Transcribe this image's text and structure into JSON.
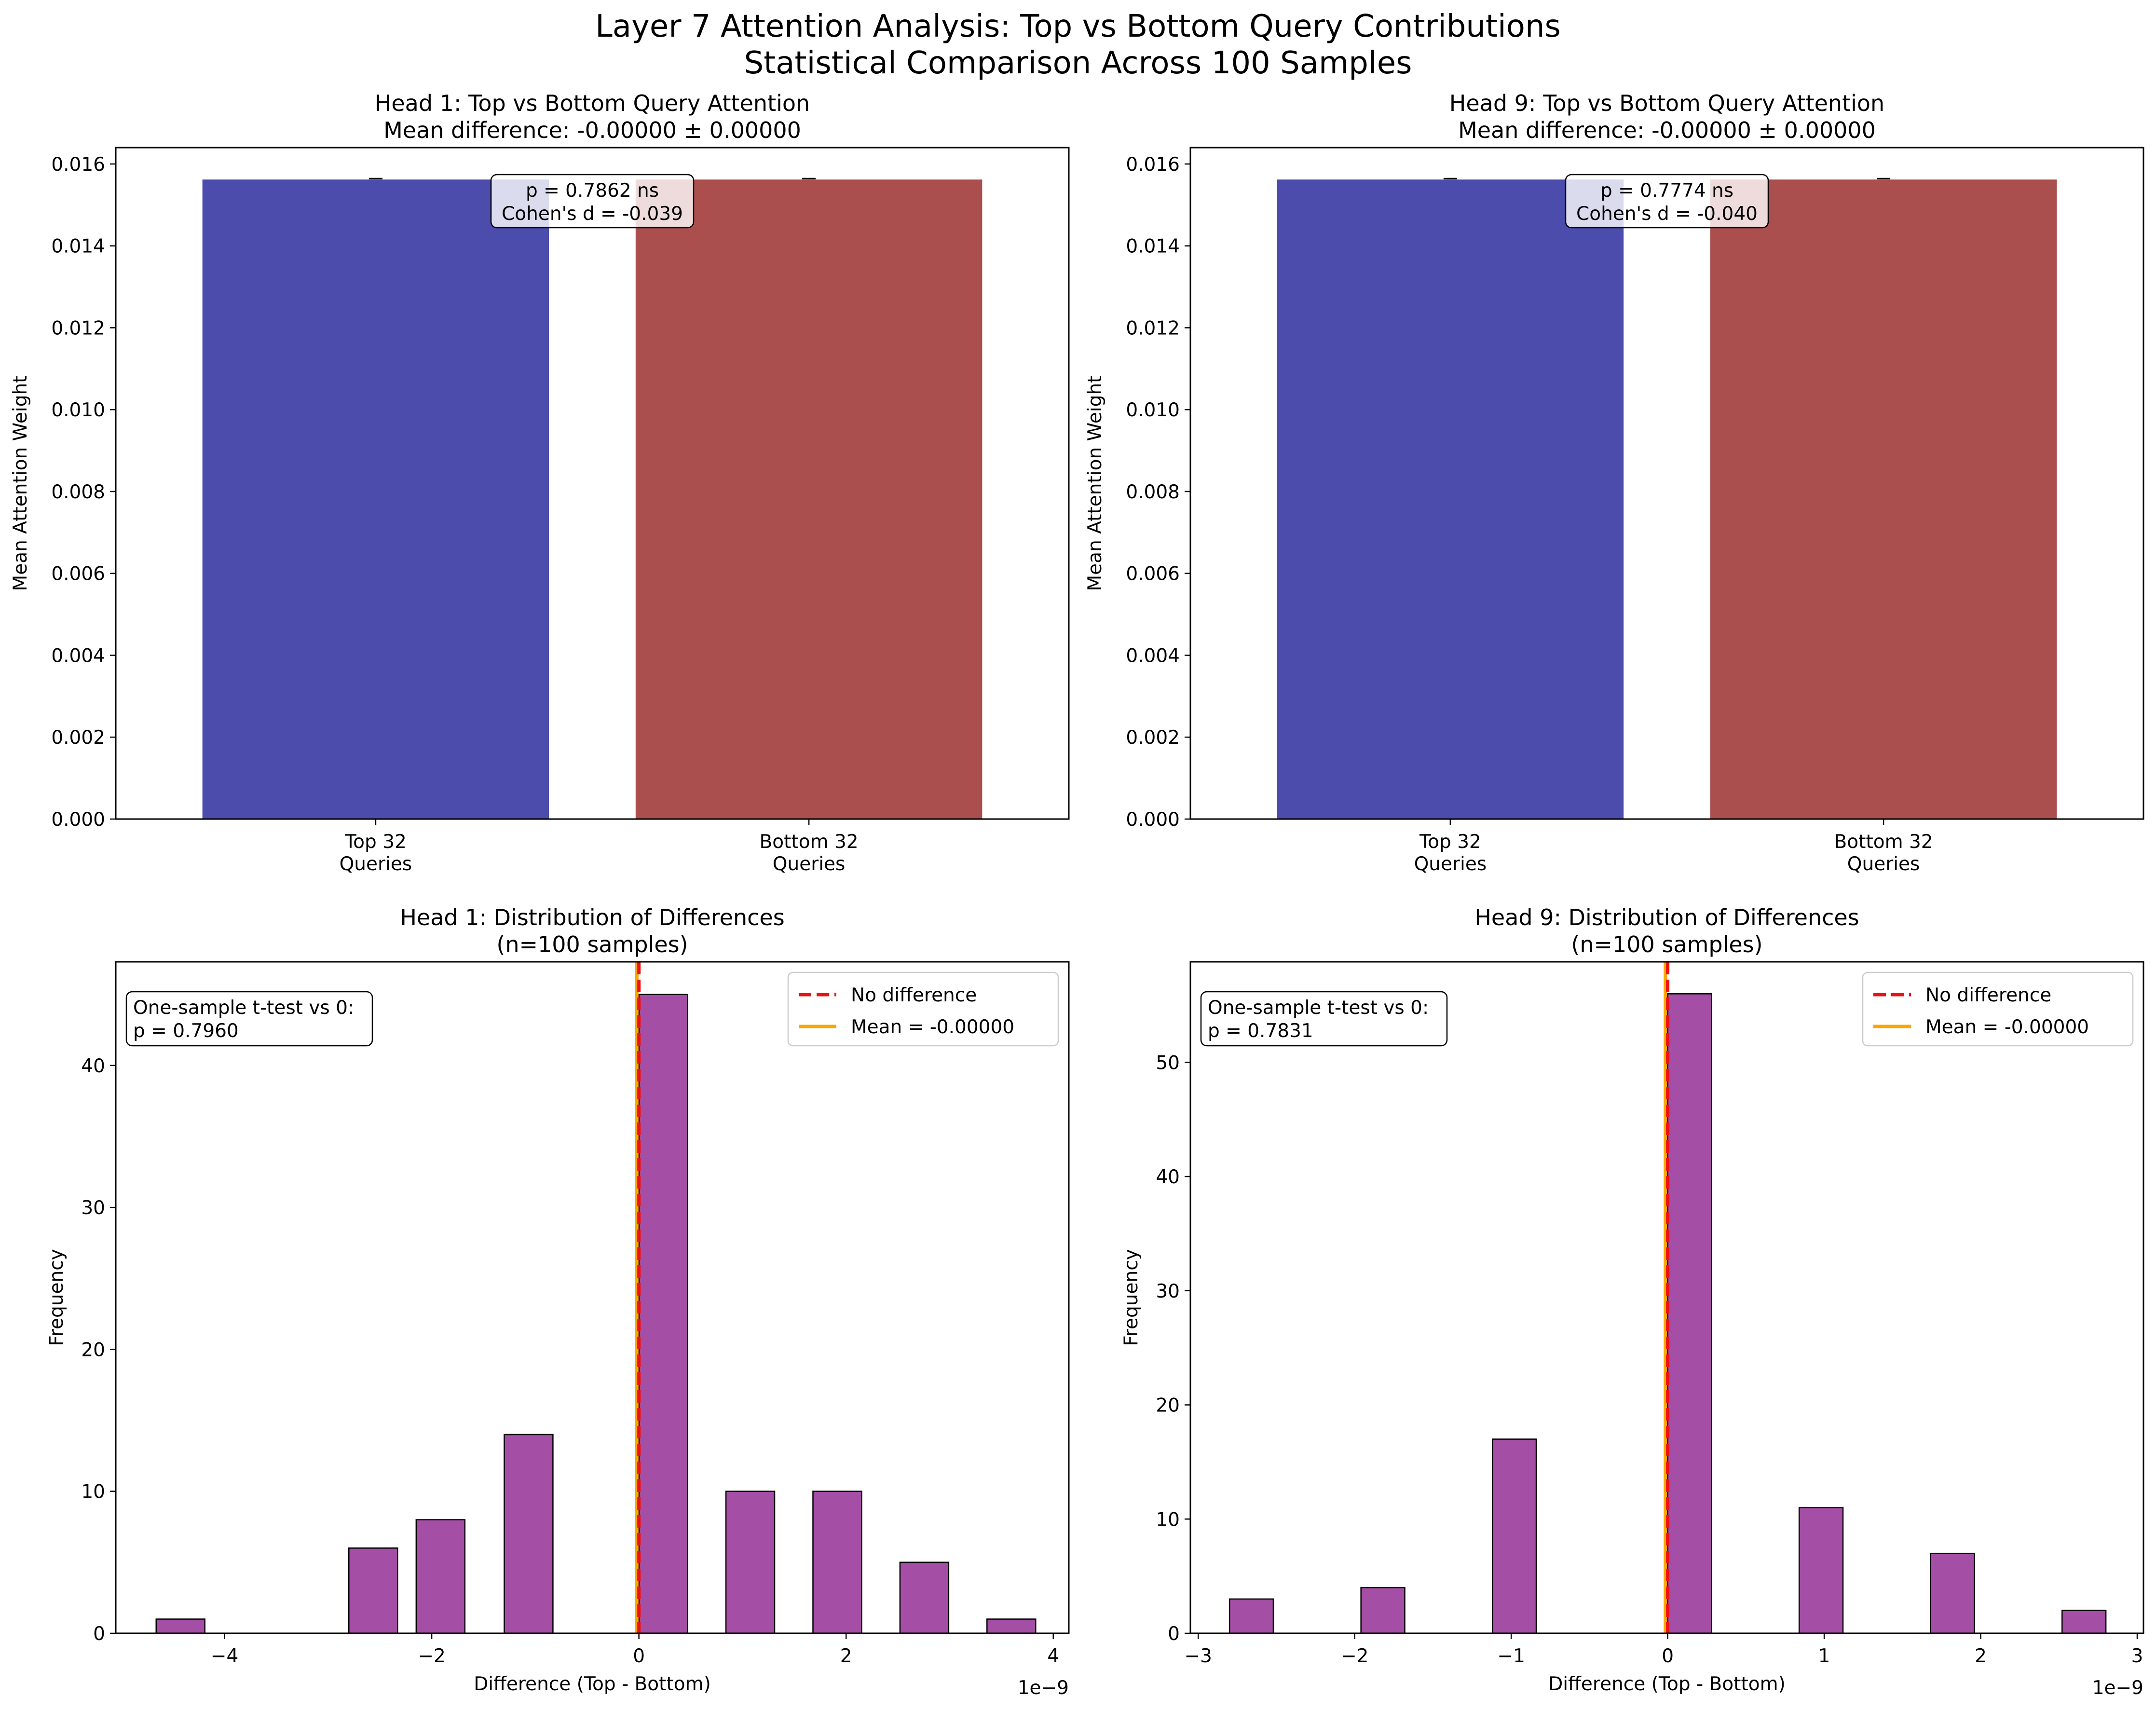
{
  "figure": {
    "title_line1": "Layer 7 Attention Analysis: Top vs Bottom Query Contributions",
    "title_line2": "Statistical Comparison Across 100 Samples"
  },
  "colors": {
    "top_bar": "#4b4cab",
    "bottom_bar": "#aa4e4e",
    "hist": "#a54ea5",
    "no_diff_line": "#ee1111",
    "mean_line": "#ffa500"
  },
  "chart_data": [
    {
      "id": "h1bar",
      "type": "bar",
      "title_line1": "Head 1: Top vs Bottom Query Attention",
      "title_line2": "Mean difference: -0.00000 ± 0.00000",
      "ylabel": "Mean Attention Weight",
      "categories": [
        [
          "Top 32",
          "Queries"
        ],
        [
          "Bottom 32",
          "Queries"
        ]
      ],
      "values": [
        0.01562,
        0.01562
      ],
      "ylim": [
        0,
        0.0164
      ],
      "yticks": [
        0.0,
        0.002,
        0.004,
        0.006,
        0.008,
        0.01,
        0.012,
        0.014,
        0.016
      ],
      "ytick_labels": [
        "0.000",
        "0.002",
        "0.004",
        "0.006",
        "0.008",
        "0.010",
        "0.012",
        "0.014",
        "0.016"
      ],
      "annotation": [
        "p = 0.7862 ns",
        "Cohen's d = -0.039"
      ]
    },
    {
      "id": "h9bar",
      "type": "bar",
      "title_line1": "Head 9: Top vs Bottom Query Attention",
      "title_line2": "Mean difference: -0.00000 ± 0.00000",
      "ylabel": "Mean Attention Weight",
      "categories": [
        [
          "Top 32",
          "Queries"
        ],
        [
          "Bottom 32",
          "Queries"
        ]
      ],
      "values": [
        0.01562,
        0.01562
      ],
      "ylim": [
        0,
        0.0164
      ],
      "yticks": [
        0.0,
        0.002,
        0.004,
        0.006,
        0.008,
        0.01,
        0.012,
        0.014,
        0.016
      ],
      "ytick_labels": [
        "0.000",
        "0.002",
        "0.004",
        "0.006",
        "0.008",
        "0.010",
        "0.012",
        "0.014",
        "0.016"
      ],
      "annotation": [
        "p = 0.7774 ns",
        "Cohen's d = -0.040"
      ]
    },
    {
      "id": "h1hist",
      "type": "histogram",
      "title_line1": "Head 1: Distribution of Differences",
      "title_line2": "(n=100 samples)",
      "xlabel": "Difference (Top - Bottom)",
      "ylabel": "Frequency",
      "x_offset_text": "1e−9",
      "xlim": [
        -5.05,
        4.15
      ],
      "ylim": [
        0,
        47.3
      ],
      "xticks": [
        -4,
        -2,
        0,
        2,
        4
      ],
      "xtick_labels": [
        "−4",
        "−2",
        "0",
        "2",
        "4"
      ],
      "yticks": [
        0,
        10,
        20,
        30,
        40
      ],
      "ytick_labels": [
        "0",
        "10",
        "20",
        "30",
        "40"
      ],
      "bins": [
        {
          "start": -4.66,
          "end": -4.19,
          "count": 1
        },
        {
          "start": -2.8,
          "end": -2.33,
          "count": 6
        },
        {
          "start": -2.15,
          "end": -1.68,
          "count": 8
        },
        {
          "start": -1.3,
          "end": -0.83,
          "count": 14
        },
        {
          "start": 0.0,
          "end": 0.47,
          "count": 45
        },
        {
          "start": 0.84,
          "end": 1.31,
          "count": 10
        },
        {
          "start": 1.68,
          "end": 2.15,
          "count": 10
        },
        {
          "start": 2.52,
          "end": 2.99,
          "count": 5
        },
        {
          "start": 3.36,
          "end": 3.83,
          "count": 1
        }
      ],
      "no_diff_x": 0.0,
      "mean_x": -0.02,
      "stat_box": [
        "One-sample t-test vs 0:",
        "p = 0.7960"
      ],
      "legend": [
        "No difference",
        "Mean = -0.00000"
      ]
    },
    {
      "id": "h9hist",
      "type": "histogram",
      "title_line1": "Head 9: Distribution of Differences",
      "title_line2": "(n=100 samples)",
      "xlabel": "Difference (Top - Bottom)",
      "ylabel": "Frequency",
      "x_offset_text": "1e−9",
      "xlim": [
        -3.05,
        3.04
      ],
      "ylim": [
        0,
        58.8
      ],
      "xticks": [
        -3,
        -2,
        -1,
        0,
        1,
        2,
        3
      ],
      "xtick_labels": [
        "−3",
        "−2",
        "−1",
        "0",
        "1",
        "2",
        "3"
      ],
      "yticks": [
        0,
        10,
        20,
        30,
        40,
        50
      ],
      "ytick_labels": [
        "0",
        "10",
        "20",
        "30",
        "40",
        "50"
      ],
      "bins": [
        {
          "start": -2.8,
          "end": -2.52,
          "count": 3
        },
        {
          "start": -1.96,
          "end": -1.68,
          "count": 4
        },
        {
          "start": -1.12,
          "end": -0.84,
          "count": 17
        },
        {
          "start": 0.0,
          "end": 0.28,
          "count": 56
        },
        {
          "start": 0.84,
          "end": 1.12,
          "count": 11
        },
        {
          "start": 1.68,
          "end": 1.96,
          "count": 7
        },
        {
          "start": 2.52,
          "end": 2.8,
          "count": 2
        }
      ],
      "no_diff_x": 0.0,
      "mean_x": -0.015,
      "stat_box": [
        "One-sample t-test vs 0:",
        "p = 0.7831"
      ],
      "legend": [
        "No difference",
        "Mean = -0.00000"
      ]
    }
  ]
}
